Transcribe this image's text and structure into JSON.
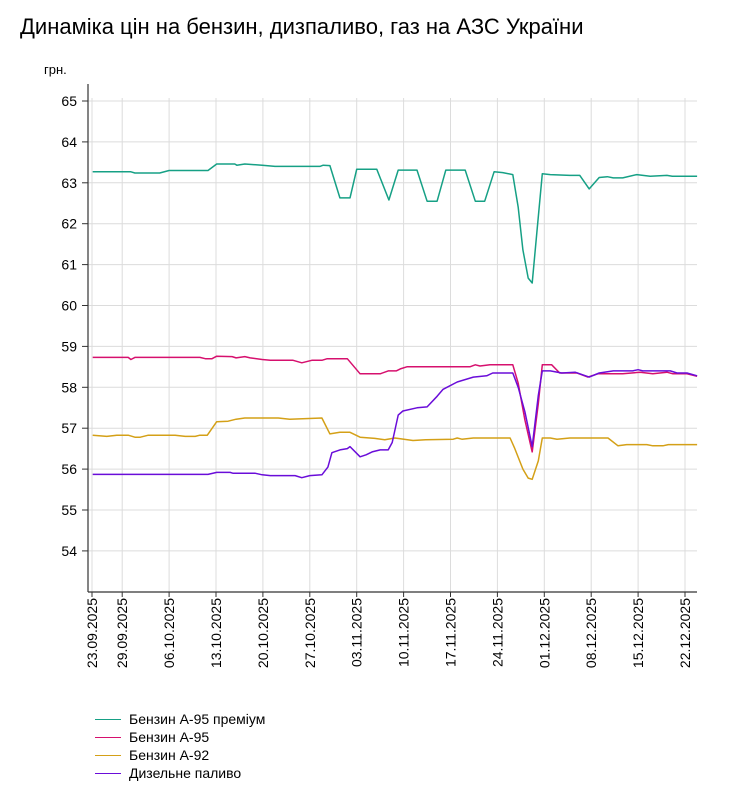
{
  "chart_data": {
    "type": "line",
    "title": "Динаміка цін на бензин, дизпаливо, газ на АЗС України",
    "ylabel": "грн.",
    "xlabel": "",
    "x_unit": "days since 23.09.2025",
    "ylim": [
      53,
      65
    ],
    "yticks": [
      54,
      55,
      56,
      57,
      58,
      59,
      60,
      61,
      62,
      63,
      64,
      65
    ],
    "grid": true,
    "legend_position": "bottom-left",
    "xticks": [
      {
        "day": 0,
        "label": "23.09.2025"
      },
      {
        "day": 6,
        "label": "29.09.2025"
      },
      {
        "day": 13,
        "label": "06.10.2025"
      },
      {
        "day": 20,
        "label": "13.10.2025"
      },
      {
        "day": 27,
        "label": "20.10.2025"
      },
      {
        "day": 34,
        "label": "27.10.2025"
      },
      {
        "day": 41,
        "label": "03.11.2025"
      },
      {
        "day": 48,
        "label": "10.11.2025"
      },
      {
        "day": 55,
        "label": "17.11.2025"
      },
      {
        "day": 62,
        "label": "24.11.2025"
      },
      {
        "day": 69,
        "label": "01.12.2025"
      },
      {
        "day": 76,
        "label": "08.12.2025"
      },
      {
        "day": 83,
        "label": "15.12.2025"
      },
      {
        "day": 90,
        "label": "22.12.2025"
      }
    ],
    "series": [
      {
        "name": "Бензин А-95 преміум",
        "color": "#16a085",
        "points": [
          [
            1.6,
            63.27
          ],
          [
            7.3,
            63.27
          ],
          [
            7.9,
            63.24
          ],
          [
            11.6,
            63.24
          ],
          [
            13,
            63.3
          ],
          [
            18.8,
            63.3
          ],
          [
            20.1,
            63.46
          ],
          [
            22.8,
            63.46
          ],
          [
            23.1,
            63.43
          ],
          [
            24.3,
            63.46
          ],
          [
            26.9,
            63.43
          ],
          [
            28.8,
            63.4
          ],
          [
            35.5,
            63.4
          ],
          [
            36,
            63.43
          ],
          [
            37,
            63.42
          ],
          [
            38.5,
            62.63
          ],
          [
            40,
            62.63
          ],
          [
            41,
            63.33
          ],
          [
            44,
            63.33
          ],
          [
            45.8,
            62.58
          ],
          [
            47.2,
            63.31
          ],
          [
            50,
            63.31
          ],
          [
            51.5,
            62.55
          ],
          [
            53,
            62.55
          ],
          [
            54.3,
            63.31
          ],
          [
            57.2,
            63.31
          ],
          [
            58.7,
            62.55
          ],
          [
            60.1,
            62.55
          ],
          [
            61.5,
            63.27
          ],
          [
            62.8,
            63.25
          ],
          [
            64.3,
            63.2
          ],
          [
            65.1,
            62.4
          ],
          [
            65.8,
            61.36
          ],
          [
            66.6,
            60.67
          ],
          [
            67.2,
            60.55
          ],
          [
            67.9,
            61.8
          ],
          [
            68.7,
            63.22
          ],
          [
            69.9,
            63.2
          ],
          [
            72.8,
            63.18
          ],
          [
            74.3,
            63.18
          ],
          [
            75.7,
            62.85
          ],
          [
            77.2,
            63.13
          ],
          [
            78.4,
            63.15
          ],
          [
            79.3,
            63.12
          ],
          [
            80.7,
            63.12
          ],
          [
            82.8,
            63.2
          ],
          [
            84.8,
            63.16
          ],
          [
            87.3,
            63.18
          ],
          [
            88.1,
            63.16
          ],
          [
            91.8,
            63.16
          ]
        ]
      },
      {
        "name": "Бензин А-95",
        "color": "#d6106e",
        "points": [
          [
            1.6,
            58.73
          ],
          [
            6.9,
            58.73
          ],
          [
            7.3,
            58.68
          ],
          [
            7.9,
            58.73
          ],
          [
            17.6,
            58.73
          ],
          [
            18.4,
            58.7
          ],
          [
            19.4,
            58.7
          ],
          [
            20.1,
            58.76
          ],
          [
            22.4,
            58.75
          ],
          [
            23,
            58.72
          ],
          [
            24.3,
            58.75
          ],
          [
            25.1,
            58.72
          ],
          [
            26.9,
            58.68
          ],
          [
            28.1,
            58.66
          ],
          [
            31.5,
            58.66
          ],
          [
            32.8,
            58.6
          ],
          [
            34.3,
            58.66
          ],
          [
            35.8,
            58.66
          ],
          [
            36.6,
            58.7
          ],
          [
            39.6,
            58.7
          ],
          [
            41.5,
            58.33
          ],
          [
            44.5,
            58.33
          ],
          [
            45.7,
            58.4
          ],
          [
            46.9,
            58.4
          ],
          [
            47.5,
            58.45
          ],
          [
            48.5,
            58.5
          ],
          [
            57.9,
            58.5
          ],
          [
            58.7,
            58.55
          ],
          [
            59.4,
            58.52
          ],
          [
            60.9,
            58.55
          ],
          [
            64.3,
            58.55
          ],
          [
            65.1,
            58.1
          ],
          [
            66.1,
            57.2
          ],
          [
            67.2,
            56.42
          ],
          [
            68.1,
            57.6
          ],
          [
            68.7,
            58.55
          ],
          [
            70.1,
            58.55
          ],
          [
            71.3,
            58.35
          ],
          [
            73.9,
            58.35
          ],
          [
            75.5,
            58.25
          ],
          [
            77,
            58.33
          ],
          [
            80.7,
            58.33
          ],
          [
            83.3,
            58.37
          ],
          [
            85.2,
            58.33
          ],
          [
            87.3,
            58.37
          ],
          [
            88.2,
            58.33
          ],
          [
            90.3,
            58.33
          ],
          [
            91.8,
            58.27
          ]
        ]
      },
      {
        "name": "Бензин А-92",
        "color": "#d4a017",
        "points": [
          [
            1.6,
            56.83
          ],
          [
            3.7,
            56.8
          ],
          [
            5.2,
            56.83
          ],
          [
            6.9,
            56.83
          ],
          [
            7.9,
            56.78
          ],
          [
            8.7,
            56.78
          ],
          [
            9.9,
            56.83
          ],
          [
            13.9,
            56.83
          ],
          [
            15.4,
            56.8
          ],
          [
            16.9,
            56.8
          ],
          [
            17.6,
            56.83
          ],
          [
            18.7,
            56.83
          ],
          [
            20.1,
            57.16
          ],
          [
            21.8,
            57.17
          ],
          [
            23,
            57.22
          ],
          [
            24.3,
            57.25
          ],
          [
            29.3,
            57.25
          ],
          [
            31,
            57.22
          ],
          [
            35.8,
            57.25
          ],
          [
            37,
            56.86
          ],
          [
            38.5,
            56.9
          ],
          [
            40,
            56.9
          ],
          [
            41.5,
            56.78
          ],
          [
            43.7,
            56.75
          ],
          [
            45.2,
            56.72
          ],
          [
            46.7,
            56.76
          ],
          [
            47.5,
            56.74
          ],
          [
            49.4,
            56.7
          ],
          [
            51.3,
            56.72
          ],
          [
            55.4,
            56.73
          ],
          [
            56,
            56.76
          ],
          [
            56.7,
            56.73
          ],
          [
            58.4,
            56.76
          ],
          [
            63.9,
            56.76
          ],
          [
            64.6,
            56.5
          ],
          [
            65.8,
            56
          ],
          [
            66.6,
            55.78
          ],
          [
            67.2,
            55.75
          ],
          [
            68.1,
            56.2
          ],
          [
            68.7,
            56.76
          ],
          [
            69.9,
            56.76
          ],
          [
            70.9,
            56.73
          ],
          [
            72.8,
            56.76
          ],
          [
            78.5,
            56.76
          ],
          [
            80,
            56.57
          ],
          [
            81.3,
            56.6
          ],
          [
            84.3,
            56.6
          ],
          [
            85.2,
            56.57
          ],
          [
            86.7,
            56.57
          ],
          [
            87.5,
            56.6
          ],
          [
            91.8,
            56.6
          ]
        ]
      },
      {
        "name": "Дизельне паливо",
        "color": "#6a0dd9",
        "points": [
          [
            1.6,
            55.87
          ],
          [
            18.8,
            55.87
          ],
          [
            20.1,
            55.92
          ],
          [
            22.1,
            55.92
          ],
          [
            22.5,
            55.9
          ],
          [
            25.8,
            55.9
          ],
          [
            26.9,
            55.86
          ],
          [
            28.1,
            55.84
          ],
          [
            31.8,
            55.84
          ],
          [
            32.8,
            55.79
          ],
          [
            34,
            55.84
          ],
          [
            35.8,
            55.86
          ],
          [
            36.7,
            56.05
          ],
          [
            37.3,
            56.4
          ],
          [
            38.5,
            56.47
          ],
          [
            39.6,
            56.5
          ],
          [
            40,
            56.55
          ],
          [
            41.5,
            56.3
          ],
          [
            42.4,
            56.35
          ],
          [
            43.3,
            56.42
          ],
          [
            44.5,
            56.47
          ],
          [
            45.7,
            56.47
          ],
          [
            46.3,
            56.65
          ],
          [
            47.2,
            57.32
          ],
          [
            47.9,
            57.42
          ],
          [
            50,
            57.5
          ],
          [
            51.5,
            57.52
          ],
          [
            53,
            57.78
          ],
          [
            53.9,
            57.95
          ],
          [
            56,
            58.13
          ],
          [
            58.4,
            58.25
          ],
          [
            60.4,
            58.28
          ],
          [
            61.3,
            58.35
          ],
          [
            64.3,
            58.35
          ],
          [
            65.1,
            58
          ],
          [
            66.1,
            57.4
          ],
          [
            67.2,
            56.55
          ],
          [
            68.1,
            57.8
          ],
          [
            68.7,
            58.4
          ],
          [
            69.9,
            58.4
          ],
          [
            71.6,
            58.35
          ],
          [
            73.6,
            58.37
          ],
          [
            75.7,
            58.25
          ],
          [
            77.2,
            58.35
          ],
          [
            79.3,
            58.4
          ],
          [
            82.2,
            58.4
          ],
          [
            83,
            58.43
          ],
          [
            83.7,
            58.4
          ],
          [
            87.8,
            58.4
          ],
          [
            88.8,
            58.35
          ],
          [
            90.3,
            58.35
          ],
          [
            91.8,
            58.28
          ]
        ]
      }
    ]
  }
}
